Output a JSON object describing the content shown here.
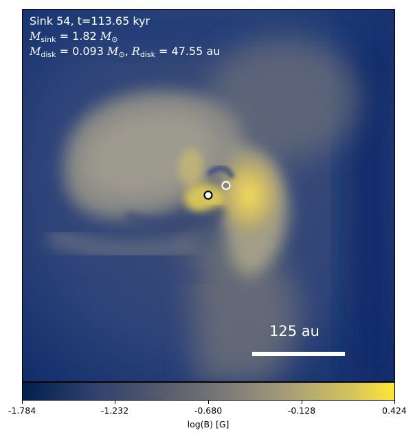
{
  "annotations": {
    "line1": "Sink 54, t=113.65 kyr",
    "msink_symbol": "M",
    "msink_sub": "sink",
    "msink_value": " = 1.82 ",
    "msink_unit": "M",
    "msink_unit_sub": "⊙",
    "mdisk_symbol": "M",
    "mdisk_sub": "disk",
    "mdisk_value": " = 0.093 ",
    "mdisk_unit": "M",
    "mdisk_unit_sub": "⊙",
    "rdisk_sep": ", ",
    "rdisk_symbol": "R",
    "rdisk_sub": "disk",
    "rdisk_value": " = 47.55 au"
  },
  "scale_bar": {
    "label": "125 au"
  },
  "colorbar": {
    "label": "log(B) [G]",
    "ticks": [
      "-1.784",
      "-1.232",
      "-0.680",
      "-0.128",
      "0.424"
    ],
    "colormap": "cividis",
    "min": -1.784,
    "max": 0.424
  },
  "colors": {
    "low": "#00204d",
    "mid": "#7c7b78",
    "high": "#fde737"
  },
  "sinks": [
    {
      "name": "primary-sink",
      "style": "white fill, black outline"
    },
    {
      "name": "secondary-sink",
      "style": "grey fill, white outline"
    }
  ]
}
